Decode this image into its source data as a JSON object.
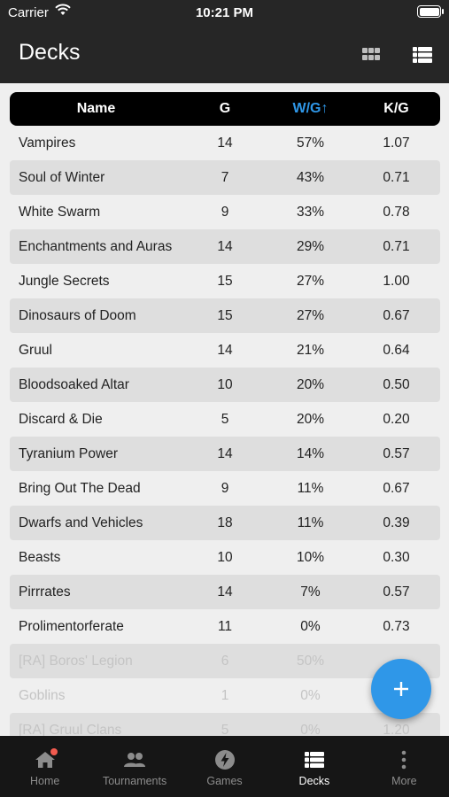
{
  "status_bar": {
    "carrier": "Carrier",
    "time": "10:21 PM"
  },
  "nav": {
    "title": "Decks"
  },
  "table": {
    "headers": {
      "name": "Name",
      "g": "G",
      "wg": "W/G↑",
      "kg": "K/G"
    },
    "rows": [
      {
        "name": "Vampires",
        "g": "14",
        "wg": "57%",
        "kg": "1.07"
      },
      {
        "name": "Soul of Winter",
        "g": "7",
        "wg": "43%",
        "kg": "0.71"
      },
      {
        "name": "White Swarm",
        "g": "9",
        "wg": "33%",
        "kg": "0.78"
      },
      {
        "name": "Enchantments and Auras",
        "g": "14",
        "wg": "29%",
        "kg": "0.71"
      },
      {
        "name": "Jungle Secrets",
        "g": "15",
        "wg": "27%",
        "kg": "1.00"
      },
      {
        "name": "Dinosaurs of Doom",
        "g": "15",
        "wg": "27%",
        "kg": "0.67"
      },
      {
        "name": "Gruul",
        "g": "14",
        "wg": "21%",
        "kg": "0.64"
      },
      {
        "name": "Bloodsoaked Altar",
        "g": "10",
        "wg": "20%",
        "kg": "0.50"
      },
      {
        "name": "Discard & Die",
        "g": "5",
        "wg": "20%",
        "kg": "0.20"
      },
      {
        "name": "Tyranium Power",
        "g": "14",
        "wg": "14%",
        "kg": "0.57"
      },
      {
        "name": "Bring Out The Dead",
        "g": "9",
        "wg": "11%",
        "kg": "0.67"
      },
      {
        "name": "Dwarfs and Vehicles",
        "g": "18",
        "wg": "11%",
        "kg": "0.39"
      },
      {
        "name": "Beasts",
        "g": "10",
        "wg": "10%",
        "kg": "0.30"
      },
      {
        "name": "Pirrrates",
        "g": "14",
        "wg": "7%",
        "kg": "0.57"
      },
      {
        "name": "Prolimentorferate",
        "g": "11",
        "wg": "0%",
        "kg": "0.73"
      },
      {
        "name": "[RA] Boros' Legion",
        "g": "6",
        "wg": "50%",
        "kg": "",
        "archived": true
      },
      {
        "name": "Goblins",
        "g": "1",
        "wg": "0%",
        "kg": "",
        "archived": true
      },
      {
        "name": "[RA] Gruul Clans",
        "g": "5",
        "wg": "0%",
        "kg": "1.20",
        "archived": true
      }
    ]
  },
  "fab": {
    "icon": "plus-icon"
  },
  "tabs": [
    {
      "label": "Home",
      "icon": "home-icon",
      "badge": true
    },
    {
      "label": "Tournaments",
      "icon": "people-icon"
    },
    {
      "label": "Games",
      "icon": "bolt-icon"
    },
    {
      "label": "Decks",
      "icon": "list-icon",
      "active": true
    },
    {
      "label": "More",
      "icon": "more-icon"
    }
  ],
  "colors": {
    "accent": "#2f97e8",
    "bar": "#262626",
    "tabbar": "#161616",
    "badge": "#f25b4f"
  }
}
